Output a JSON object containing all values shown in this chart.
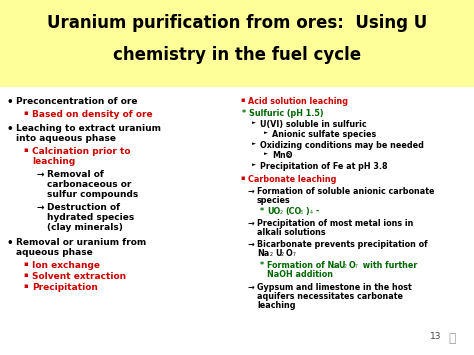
{
  "title_line1": "Uranium purification from ores:  Using U",
  "title_line2": "chemistry in the fuel cycle",
  "bg_color": "#ffffff",
  "title_bg": "#ffff99",
  "title_color": "#000000",
  "left_bullet_color": "#000000",
  "left_sub_color": "#cc0000",
  "right_main_color": "#cc0000",
  "right_sub_color": "#006600",
  "right_body_color": "#000000",
  "page_number": "13",
  "lc": "#000000",
  "lr": "#cc0000",
  "rc": "#cc0000",
  "rg": "#006600",
  "rb": "#000000"
}
